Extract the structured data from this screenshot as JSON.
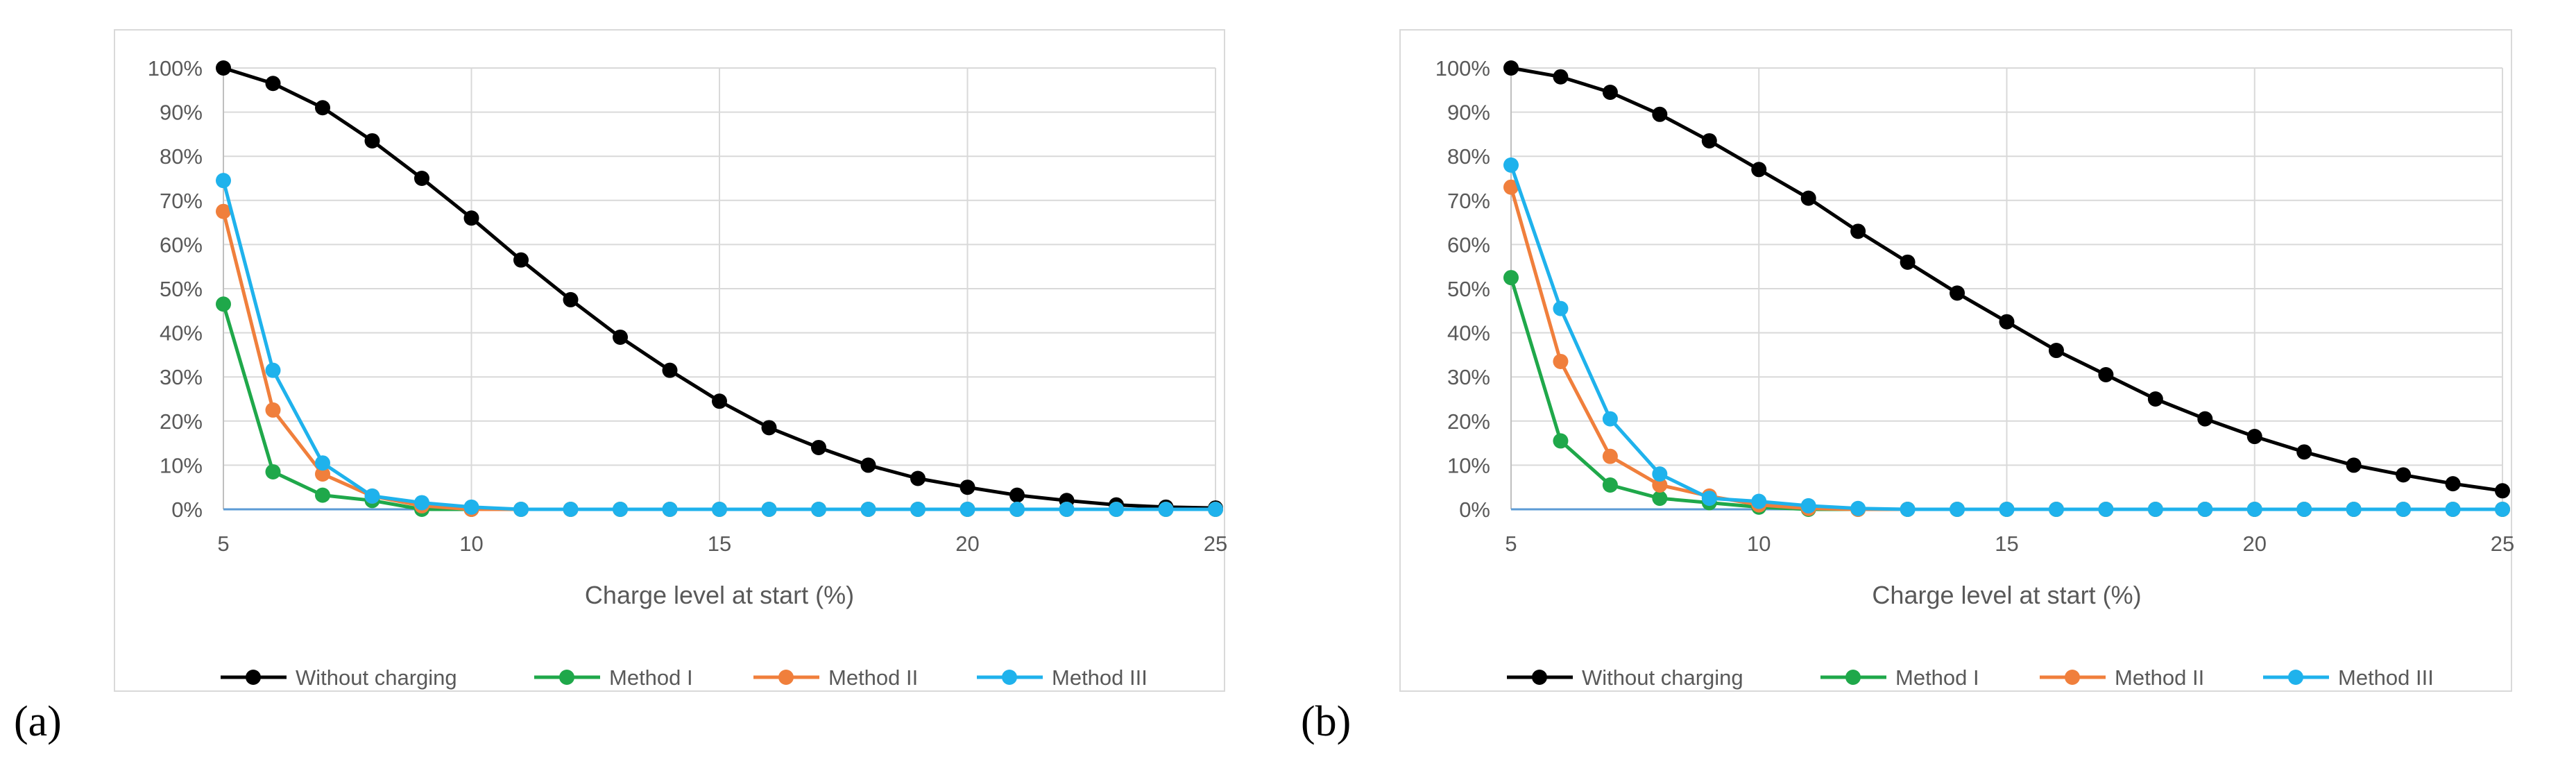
{
  "chart_data": [
    {
      "type": "line",
      "panel_label": "(a)",
      "xlabel": "Charge level at start (%)",
      "ylabel": "",
      "xlim": [
        5,
        25
      ],
      "ylim": [
        0,
        100
      ],
      "x_ticks": [
        "5",
        "10",
        "15",
        "20",
        "25"
      ],
      "y_ticks": [
        "0%",
        "10%",
        "20%",
        "30%",
        "40%",
        "50%",
        "60%",
        "70%",
        "80%",
        "90%",
        "100%"
      ],
      "grid": true,
      "legend_position": "bottom",
      "x": [
        5,
        6,
        7,
        8,
        9,
        10,
        11,
        12,
        13,
        14,
        15,
        16,
        17,
        18,
        19,
        20,
        21,
        22,
        23,
        24,
        25
      ],
      "series": [
        {
          "name": "Without charging",
          "color": "#000000",
          "values": [
            100,
            96.5,
            91,
            83.5,
            75,
            66,
            56.5,
            47.5,
            39,
            31.5,
            24.5,
            18.5,
            14,
            10,
            7,
            5,
            3.2,
            2,
            1,
            0.5,
            0.3
          ]
        },
        {
          "name": "Method I",
          "color": "#1fa84a",
          "values": [
            46.5,
            8.5,
            3.2,
            2,
            0,
            0,
            0,
            0,
            0,
            0,
            0,
            0,
            0,
            0,
            0,
            0,
            0,
            0,
            0,
            0,
            0
          ]
        },
        {
          "name": "Method II",
          "color": "#f07f3c",
          "values": [
            67.5,
            22.5,
            8,
            3,
            0.8,
            0,
            0,
            0,
            0,
            0,
            0,
            0,
            0,
            0,
            0,
            0,
            0,
            0,
            0,
            0,
            0
          ]
        },
        {
          "name": "Method III",
          "color": "#1fb2ec",
          "values": [
            74.5,
            31.5,
            10.5,
            3,
            1.5,
            0.5,
            0,
            0,
            0,
            0,
            0,
            0,
            0,
            0,
            0,
            0,
            0,
            0,
            0,
            0,
            0
          ]
        }
      ]
    },
    {
      "type": "line",
      "panel_label": "(b)",
      "xlabel": "Charge level at start (%)",
      "ylabel": "",
      "xlim": [
        5,
        25
      ],
      "ylim": [
        0,
        100
      ],
      "x_ticks": [
        "5",
        "10",
        "15",
        "20",
        "25"
      ],
      "y_ticks": [
        "0%",
        "10%",
        "20%",
        "30%",
        "40%",
        "50%",
        "60%",
        "70%",
        "80%",
        "90%",
        "100%"
      ],
      "grid": true,
      "legend_position": "bottom",
      "x": [
        5,
        6,
        7,
        8,
        9,
        10,
        11,
        12,
        13,
        14,
        15,
        16,
        17,
        18,
        19,
        20,
        21,
        22,
        23,
        24,
        25
      ],
      "series": [
        {
          "name": "Without charging",
          "color": "#000000",
          "values": [
            100,
            98,
            94.5,
            89.5,
            83.5,
            77,
            70.5,
            63,
            56,
            49,
            42.5,
            36,
            30.5,
            25,
            20.5,
            16.5,
            13,
            10,
            7.8,
            5.8,
            4.2
          ]
        },
        {
          "name": "Method I",
          "color": "#1fa84a",
          "values": [
            52.5,
            15.5,
            5.5,
            2.5,
            1.5,
            0.5,
            0,
            0,
            0,
            0,
            0,
            0,
            0,
            0,
            0,
            0,
            0,
            0,
            0,
            0,
            0
          ]
        },
        {
          "name": "Method II",
          "color": "#f07f3c",
          "values": [
            73,
            33.5,
            12,
            5.5,
            3,
            1,
            0.2,
            0,
            0,
            0,
            0,
            0,
            0,
            0,
            0,
            0,
            0,
            0,
            0,
            0,
            0
          ]
        },
        {
          "name": "Method III",
          "color": "#1fb2ec",
          "values": [
            78,
            45.5,
            20.5,
            8,
            2.5,
            1.8,
            0.8,
            0.2,
            0,
            0,
            0,
            0,
            0,
            0,
            0,
            0,
            0,
            0,
            0,
            0,
            0
          ]
        }
      ]
    }
  ]
}
